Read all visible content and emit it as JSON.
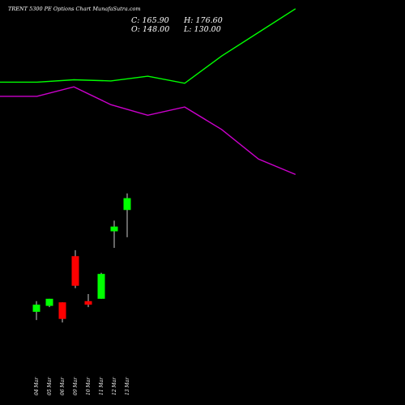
{
  "chart_data": {
    "type": "candlestick",
    "title": "TRENT 5300  PE Options  Chart MunafaSutra.com",
    "ohlc_labels": {
      "close": "C: 165.90",
      "high": "H: 176.60",
      "open": "O: 148.00",
      "low": "L: 130.00"
    },
    "colors": {
      "background": "#000000",
      "up": "#00ff00",
      "down": "#ff0000",
      "line_upper": "#00ff00",
      "line_lower": "#cc00cc",
      "wick": "#ffffff",
      "text": "#ffffff"
    },
    "price_range": [
      10,
      270
    ],
    "candles": [
      {
        "date": "04 Mar",
        "open": 34,
        "high": 43,
        "low": 27,
        "close": 40
      },
      {
        "date": "05 Mar",
        "open": 39,
        "high": 45,
        "low": 38,
        "close": 45
      },
      {
        "date": "06 Mar",
        "open": 42,
        "high": 42,
        "low": 25,
        "close": 28
      },
      {
        "date": "09 Mar",
        "open": 81,
        "high": 86,
        "low": 54,
        "close": 56
      },
      {
        "date": "10 Mar",
        "open": 43,
        "high": 49,
        "low": 38,
        "close": 40
      },
      {
        "date": "11 Mar",
        "open": 45,
        "high": 67,
        "low": 45,
        "close": 66
      },
      {
        "date": "12 Mar",
        "open": 102,
        "high": 111,
        "low": 88,
        "close": 106
      },
      {
        "date": "13 Mar",
        "open": 120,
        "high": 134,
        "low": 97,
        "close": 130
      }
    ],
    "line_series": [
      {
        "points": [
          228,
          228,
          230,
          229,
          233,
          227,
          250,
          270,
          290
        ]
      },
      {
        "points": [
          216,
          216,
          224,
          209,
          200,
          207,
          188,
          163,
          150
        ]
      }
    ]
  }
}
